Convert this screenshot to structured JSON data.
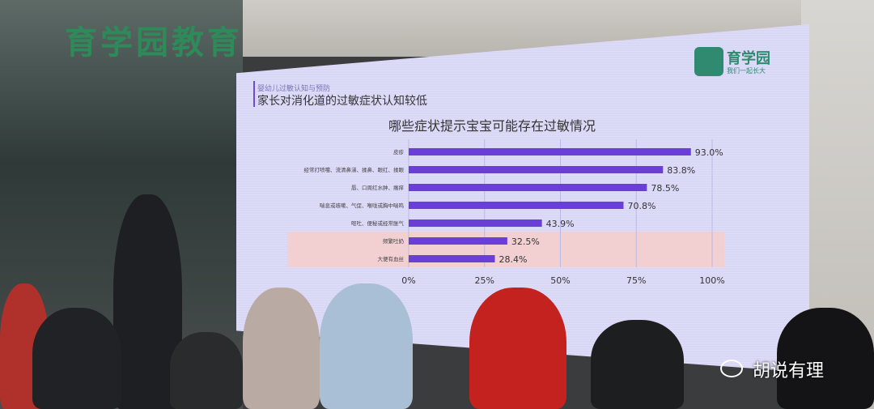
{
  "scene": {
    "store_sign": "育学园教育",
    "watermark": "胡说有理"
  },
  "slide": {
    "subtitle": "婴幼儿过敏认知与预防",
    "heading": "家长对消化道的过敏症状认知较低",
    "logo": {
      "name": "育学园",
      "slogan": "我们一起长大"
    }
  },
  "chart_data": {
    "type": "bar",
    "orientation": "horizontal",
    "title": "哪些症状提示宝宝可能存在过敏情况",
    "categories": [
      "皮疹",
      "经常打喷嚏、流清鼻涕、揉鼻、眼红、揉眼",
      "唇、口周红水肿、瘙痒",
      "喘息或咳嗽、气促、喉咙或胸中喘鸣",
      "呕吐、便秘或经常胀气",
      "频繁吐奶",
      "大便有血丝"
    ],
    "values": [
      93.0,
      83.8,
      78.5,
      70.8,
      43.9,
      32.5,
      28.4
    ],
    "value_labels": [
      "93.0%",
      "83.8%",
      "78.5%",
      "70.8%",
      "43.9%",
      "32.5%",
      "28.4%"
    ],
    "xticks": [
      "0%",
      "25%",
      "50%",
      "75%",
      "100%"
    ],
    "xlim": [
      0,
      100
    ],
    "highlighted_categories": [
      "频繁吐奶",
      "大便有血丝"
    ],
    "colors": {
      "bar": "#6a3fd8",
      "highlight": "#f2cfd0"
    }
  }
}
